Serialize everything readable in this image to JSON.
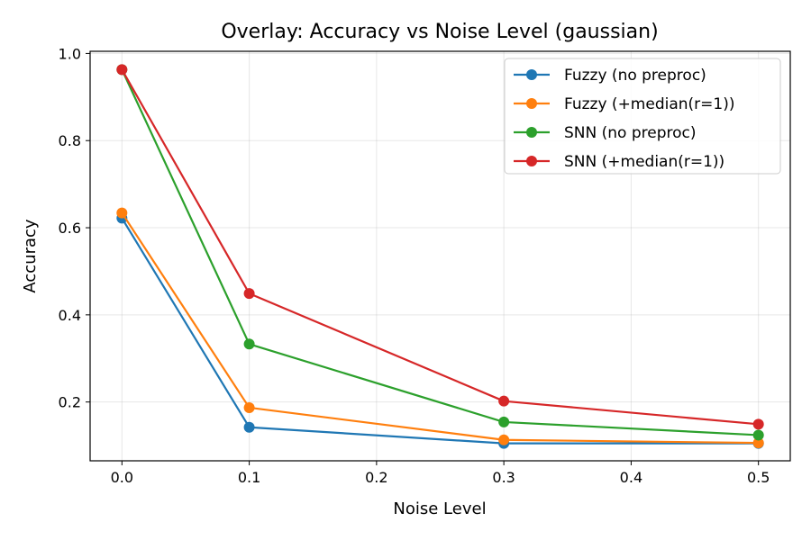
{
  "chart_data": {
    "type": "line",
    "title": "Overlay: Accuracy vs Noise Level (gaussian)",
    "xlabel": "Noise Level",
    "ylabel": "Accuracy",
    "x": [
      0.0,
      0.1,
      0.3,
      0.5
    ],
    "xlim": [
      -0.025,
      0.525
    ],
    "ylim": [
      0.065,
      1.005
    ],
    "xticks": [
      0.0,
      0.1,
      0.2,
      0.3,
      0.4,
      0.5
    ],
    "xtick_labels": [
      "0.0",
      "0.1",
      "0.2",
      "0.3",
      "0.4",
      "0.5"
    ],
    "yticks": [
      0.2,
      0.4,
      0.6,
      0.8,
      1.0
    ],
    "ytick_labels": [
      "0.2",
      "0.4",
      "0.6",
      "0.8",
      "1.0"
    ],
    "grid": true,
    "legend_position": "top-right",
    "series": [
      {
        "name": "Fuzzy (no preproc)",
        "color": "#1f77b4",
        "values": [
          0.622,
          0.142,
          0.105,
          0.105
        ]
      },
      {
        "name": "Fuzzy (+median(r=1))",
        "color": "#ff7f0e",
        "values": [
          0.634,
          0.187,
          0.113,
          0.106
        ]
      },
      {
        "name": "SNN (no preproc)",
        "color": "#2ca02c",
        "values": [
          0.963,
          0.333,
          0.154,
          0.124
        ]
      },
      {
        "name": "SNN (+median(r=1))",
        "color": "#d62728",
        "values": [
          0.963,
          0.449,
          0.202,
          0.149
        ]
      }
    ]
  }
}
